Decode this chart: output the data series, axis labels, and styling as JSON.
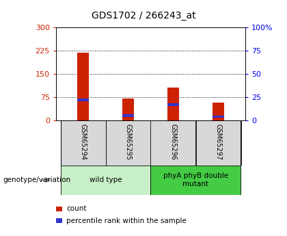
{
  "title": "GDS1702 / 266243_at",
  "samples": [
    "GSM65294",
    "GSM65295",
    "GSM65296",
    "GSM65297"
  ],
  "count_values": [
    218,
    70,
    105,
    58
  ],
  "percentile_values": [
    22,
    5,
    17,
    4
  ],
  "left_yticks": [
    0,
    75,
    150,
    225,
    300
  ],
  "right_yticks": [
    0,
    25,
    50,
    75,
    100
  ],
  "right_yticklabels": [
    "0",
    "25",
    "50",
    "75",
    "100%"
  ],
  "ylim": [
    0,
    300
  ],
  "right_ylim": [
    0,
    100
  ],
  "bar_color_red": "#CC2200",
  "bar_color_blue": "#3333CC",
  "left_tick_color": "#CC2200",
  "right_tick_color": "#0000EE",
  "groups": [
    {
      "label": "wild type",
      "indices": [
        0,
        1
      ],
      "color": "#c8f0c8"
    },
    {
      "label": "phyA phyB double\nmutant",
      "indices": [
        2,
        3
      ],
      "color": "#44cc44"
    }
  ],
  "genotype_label": "genotype/variation",
  "legend_items": [
    {
      "color": "#CC2200",
      "label": "count"
    },
    {
      "color": "#3333CC",
      "label": "percentile rank within the sample"
    }
  ],
  "bar_width": 0.25,
  "bg_color": "#d8d8d8",
  "blue_bar_height": 8
}
